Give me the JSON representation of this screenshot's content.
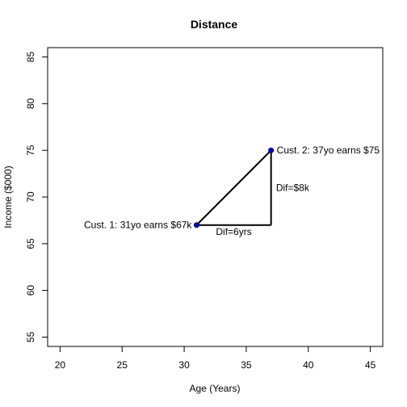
{
  "chart_data": {
    "type": "scatter",
    "title": "Distance",
    "xlabel": "Age (Years)",
    "ylabel": "Income ($000)",
    "xlim": [
      19,
      46
    ],
    "ylim": [
      54,
      86
    ],
    "xticks": [
      20,
      25,
      30,
      35,
      40,
      45
    ],
    "yticks": [
      55,
      60,
      65,
      70,
      75,
      80,
      85
    ],
    "grid": false,
    "legend": "none",
    "points": [
      {
        "x": 31,
        "y": 67,
        "label": "Cust. 1: 31yo earns $67k",
        "label_side": "left"
      },
      {
        "x": 37,
        "y": 75,
        "label": "Cust. 2: 37yo earns $75",
        "label_side": "right"
      }
    ],
    "segments": [
      {
        "from": [
          31,
          67
        ],
        "to": [
          37,
          75
        ]
      },
      {
        "from": [
          31,
          67
        ],
        "to": [
          37,
          67
        ]
      },
      {
        "from": [
          37,
          67
        ],
        "to": [
          37,
          75
        ]
      }
    ],
    "annotations": [
      {
        "text": "Dif=6yrs",
        "x": 34,
        "y": 66.3
      },
      {
        "text": "Dif=$8k",
        "x": 37.4,
        "y": 71
      }
    ],
    "colors": {
      "point": "#0000cd",
      "line": "#000000"
    }
  }
}
